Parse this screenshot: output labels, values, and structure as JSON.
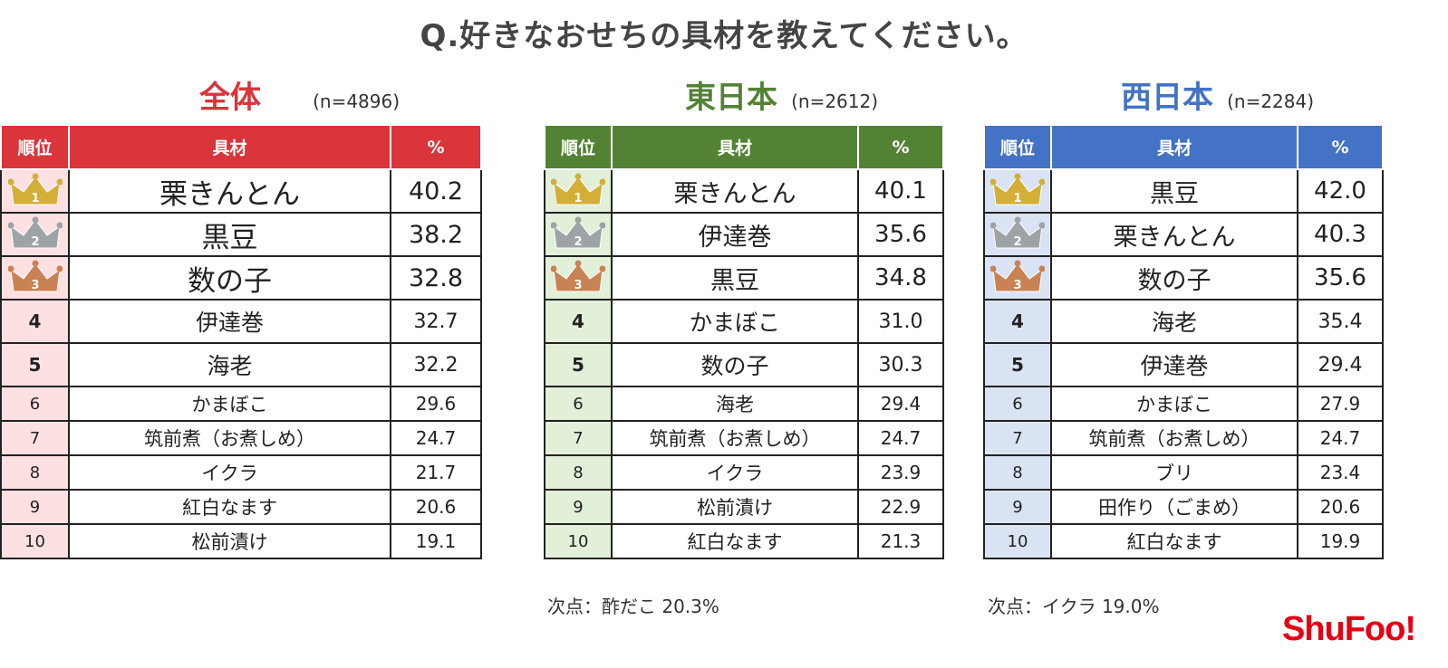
{
  "title": "Q.好きなおせちの具材を教えてください。",
  "columns": {
    "rank": "順位",
    "item": "具材",
    "pct": "%"
  },
  "colors": {
    "all": "#d9353a",
    "east": "#548235",
    "west": "#4472c4",
    "gold": "#d4af37",
    "silver": "#9ea3a6",
    "bronze": "#c98254"
  },
  "icons": [
    "crown-gold-icon",
    "crown-silver-icon",
    "crown-bronze-icon"
  ],
  "panels": [
    {
      "id": "all",
      "title": "全体",
      "n": "(n=4896)",
      "rows": [
        {
          "rank": "1",
          "item": "栗きんとん",
          "pct": "40.2"
        },
        {
          "rank": "2",
          "item": "黒豆",
          "pct": "38.2"
        },
        {
          "rank": "3",
          "item": "数の子",
          "pct": "32.8"
        },
        {
          "rank": "4",
          "item": "伊達巻",
          "pct": "32.7"
        },
        {
          "rank": "5",
          "item": "海老",
          "pct": "32.2"
        },
        {
          "rank": "6",
          "item": "かまぼこ",
          "pct": "29.6"
        },
        {
          "rank": "7",
          "item": "筑前煮（お煮しめ）",
          "pct": "24.7"
        },
        {
          "rank": "8",
          "item": "イクラ",
          "pct": "21.7"
        },
        {
          "rank": "9",
          "item": "紅白なます",
          "pct": "20.6"
        },
        {
          "rank": "10",
          "item": "松前漬け",
          "pct": "19.1"
        }
      ],
      "note": ""
    },
    {
      "id": "east",
      "title": "東日本",
      "n": "(n=2612)",
      "rows": [
        {
          "rank": "1",
          "item": "栗きんとん",
          "pct": "40.1"
        },
        {
          "rank": "2",
          "item": "伊達巻",
          "pct": "35.6"
        },
        {
          "rank": "3",
          "item": "黒豆",
          "pct": "34.8"
        },
        {
          "rank": "4",
          "item": "かまぼこ",
          "pct": "31.0"
        },
        {
          "rank": "5",
          "item": "数の子",
          "pct": "30.3"
        },
        {
          "rank": "6",
          "item": "海老",
          "pct": "29.4"
        },
        {
          "rank": "7",
          "item": "筑前煮（お煮しめ）",
          "pct": "24.7"
        },
        {
          "rank": "8",
          "item": "イクラ",
          "pct": "23.9"
        },
        {
          "rank": "9",
          "item": "松前漬け",
          "pct": "22.9"
        },
        {
          "rank": "10",
          "item": "紅白なます",
          "pct": "21.3"
        }
      ],
      "note": "次点：酢だこ 20.3%"
    },
    {
      "id": "west",
      "title": "西日本",
      "n": "(n=2284)",
      "rows": [
        {
          "rank": "1",
          "item": "黒豆",
          "pct": "42.0"
        },
        {
          "rank": "2",
          "item": "栗きんとん",
          "pct": "40.3"
        },
        {
          "rank": "3",
          "item": "数の子",
          "pct": "35.6"
        },
        {
          "rank": "4",
          "item": "海老",
          "pct": "35.4"
        },
        {
          "rank": "5",
          "item": "伊達巻",
          "pct": "29.4"
        },
        {
          "rank": "6",
          "item": "かまぼこ",
          "pct": "27.9"
        },
        {
          "rank": "7",
          "item": "筑前煮（お煮しめ）",
          "pct": "24.7"
        },
        {
          "rank": "8",
          "item": "ブリ",
          "pct": "23.4"
        },
        {
          "rank": "9",
          "item": "田作り（ごまめ）",
          "pct": "20.6"
        },
        {
          "rank": "10",
          "item": "紅白なます",
          "pct": "19.9"
        }
      ],
      "note": "次点：イクラ 19.0%"
    }
  ],
  "logo": "ShuFoo!",
  "chart_data": [
    {
      "type": "table",
      "title": "全体",
      "subtitle": "(n=4896)",
      "columns": [
        "順位",
        "具材",
        "%"
      ],
      "categories": [
        "栗きんとん",
        "黒豆",
        "数の子",
        "伊達巻",
        "海老",
        "かまぼこ",
        "筑前煮（お煮しめ）",
        "イクラ",
        "紅白なます",
        "松前漬け"
      ],
      "values": [
        40.2,
        38.2,
        32.8,
        32.7,
        32.2,
        29.6,
        24.7,
        21.7,
        20.6,
        19.1
      ]
    },
    {
      "type": "table",
      "title": "東日本",
      "subtitle": "(n=2612)",
      "columns": [
        "順位",
        "具材",
        "%"
      ],
      "categories": [
        "栗きんとん",
        "伊達巻",
        "黒豆",
        "かまぼこ",
        "数の子",
        "海老",
        "筑前煮（お煮しめ）",
        "イクラ",
        "松前漬け",
        "紅白なます"
      ],
      "values": [
        40.1,
        35.6,
        34.8,
        31.0,
        30.3,
        29.4,
        24.7,
        23.9,
        22.9,
        21.3
      ]
    },
    {
      "type": "table",
      "title": "西日本",
      "subtitle": "(n=2284)",
      "columns": [
        "順位",
        "具材",
        "%"
      ],
      "categories": [
        "黒豆",
        "栗きんとん",
        "数の子",
        "海老",
        "伊達巻",
        "かまぼこ",
        "筑前煮（お煮しめ）",
        "ブリ",
        "田作り（ごまめ）",
        "紅白なます"
      ],
      "values": [
        42.0,
        40.3,
        35.6,
        35.4,
        29.4,
        27.9,
        24.7,
        23.4,
        20.6,
        19.9
      ]
    }
  ]
}
